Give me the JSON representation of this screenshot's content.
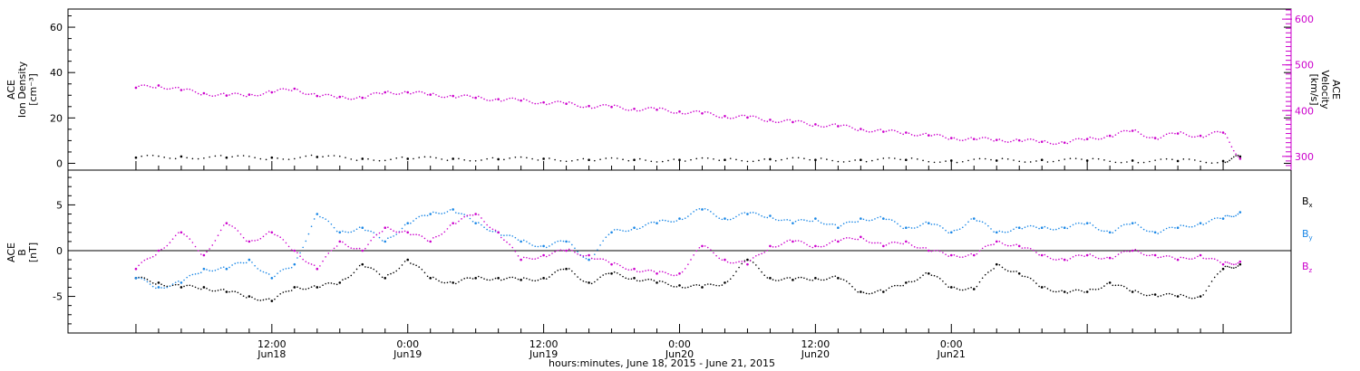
{
  "chart_data": [
    {
      "type": "scatter",
      "panel": "top",
      "left_axis": {
        "label_lines": [
          "ACE",
          "Ion Density",
          "[cm⁻³]"
        ],
        "ticks": [
          0,
          20,
          40,
          60
        ],
        "tick_labels": [
          "0",
          "20",
          "40",
          "60"
        ],
        "range": [
          -3,
          68
        ],
        "color": "#000000"
      },
      "right_axis": {
        "label_lines": [
          "ACE",
          "Velocity",
          "[km/s]"
        ],
        "ticks": [
          300,
          400,
          500,
          600
        ],
        "tick_labels": [
          "300",
          "400",
          "500",
          "600"
        ],
        "range": [
          270,
          622
        ],
        "color": "#cc00cc"
      },
      "series": [
        {
          "axis": "right",
          "color": "#cc00cc",
          "x": [
            0,
            2,
            4,
            6,
            8,
            10,
            12,
            14,
            16,
            18,
            20,
            22,
            24,
            26,
            28,
            30,
            32,
            34,
            36,
            38,
            40,
            42,
            44,
            46,
            48,
            50,
            52,
            54,
            56,
            58,
            60,
            62,
            64,
            66,
            68,
            70,
            72,
            74,
            76,
            78,
            80,
            82,
            84,
            86,
            88,
            90,
            92,
            94,
            96,
            97.5
          ],
          "values": [
            450,
            455,
            445,
            438,
            433,
            435,
            440,
            448,
            432,
            430,
            428,
            440,
            440,
            435,
            432,
            428,
            425,
            422,
            418,
            415,
            410,
            408,
            404,
            402,
            398,
            394,
            388,
            385,
            380,
            375,
            370,
            366,
            360,
            354,
            352,
            346,
            340,
            338,
            336,
            335,
            332,
            330,
            338,
            345,
            356,
            340,
            350,
            345,
            352,
            295
          ]
        },
        {
          "axis": "left",
          "color": "#000000",
          "x": [
            0,
            4,
            8,
            12,
            16,
            20,
            24,
            28,
            32,
            36,
            40,
            44,
            48,
            52,
            56,
            60,
            64,
            68,
            72,
            76,
            80,
            84,
            88,
            92,
            96,
            97.5
          ],
          "values": [
            2.5,
            3,
            2.5,
            2.5,
            2.8,
            2,
            2,
            2,
            1.8,
            2,
            1.5,
            1.5,
            1.5,
            1.5,
            1.8,
            1.5,
            1.5,
            1.5,
            1.2,
            1.2,
            1.5,
            1.2,
            1.2,
            1,
            1,
            3
          ]
        }
      ]
    },
    {
      "type": "scatter",
      "panel": "bottom",
      "left_axis": {
        "label_lines": [
          "ACE",
          "B",
          "[nT]"
        ],
        "ticks": [
          -5,
          0,
          5
        ],
        "tick_labels": [
          "-5",
          "0",
          "5"
        ],
        "range": [
          -9,
          8.8
        ]
      },
      "zero_line": true,
      "series": [
        {
          "name": "B",
          "subscript": "x",
          "color": "#000000",
          "x": [
            0,
            2,
            4,
            6,
            8,
            10,
            12,
            14,
            16,
            18,
            20,
            22,
            24,
            26,
            28,
            30,
            32,
            34,
            36,
            38,
            40,
            42,
            44,
            46,
            48,
            50,
            52,
            54,
            56,
            58,
            60,
            62,
            64,
            66,
            68,
            70,
            72,
            74,
            76,
            78,
            80,
            82,
            84,
            86,
            88,
            90,
            92,
            94,
            96,
            97.5
          ],
          "values": [
            -3,
            -3.5,
            -4,
            -4,
            -4.5,
            -5,
            -5.5,
            -4,
            -4,
            -3.5,
            -1.5,
            -3,
            -1,
            -3,
            -3.5,
            -3,
            -3,
            -3.2,
            -3,
            -2,
            -3.5,
            -2.5,
            -3,
            -3.5,
            -3.8,
            -4,
            -3.5,
            -1,
            -3,
            -3.2,
            -3,
            -3,
            -4.5,
            -4.5,
            -3.5,
            -2.5,
            -4,
            -4.2,
            -1.5,
            -2.5,
            -4,
            -4.5,
            -4.5,
            -3.5,
            -4.5,
            -4.8,
            -5,
            -5,
            -2,
            -1.5
          ]
        },
        {
          "name": "B",
          "subscript": "y",
          "color": "#1a87e6",
          "x": [
            0,
            2,
            4,
            6,
            8,
            10,
            12,
            14,
            16,
            18,
            20,
            22,
            24,
            26,
            28,
            30,
            32,
            34,
            36,
            38,
            40,
            42,
            44,
            46,
            48,
            50,
            52,
            54,
            56,
            58,
            60,
            62,
            64,
            66,
            68,
            70,
            72,
            74,
            76,
            78,
            80,
            82,
            84,
            86,
            88,
            90,
            92,
            94,
            96,
            97.5
          ],
          "values": [
            -3,
            -4,
            -3.5,
            -2,
            -2,
            -1,
            -3,
            -1.5,
            4,
            2,
            2.5,
            1,
            3,
            4,
            4.5,
            3,
            2,
            1,
            0.5,
            1,
            -1,
            2,
            2.5,
            3,
            3.5,
            4.5,
            3.5,
            4,
            3.8,
            3,
            3.5,
            2.5,
            3.5,
            3.5,
            2.5,
            3,
            2,
            3.5,
            2,
            2.5,
            2.5,
            2.5,
            3,
            2,
            3,
            2,
            2.5,
            3,
            3.5,
            4.2
          ]
        },
        {
          "name": "B",
          "subscript": "z",
          "color": "#cc00cc",
          "x": [
            0,
            2,
            4,
            6,
            8,
            10,
            12,
            14,
            16,
            18,
            20,
            22,
            24,
            26,
            28,
            30,
            32,
            34,
            36,
            38,
            40,
            42,
            44,
            46,
            48,
            50,
            52,
            54,
            56,
            58,
            60,
            62,
            64,
            66,
            68,
            70,
            72,
            74,
            76,
            78,
            80,
            82,
            84,
            86,
            88,
            90,
            92,
            94,
            96,
            97.5
          ],
          "values": [
            -2,
            0,
            2,
            -0.5,
            3,
            1,
            2,
            0,
            -2,
            1,
            0,
            2.5,
            2,
            1,
            3,
            4,
            2,
            -1,
            -0.5,
            0,
            -0.5,
            -1.5,
            -2,
            -2.5,
            -2.5,
            0.5,
            -1,
            -1.5,
            0.5,
            1,
            0.5,
            1,
            1.5,
            0.5,
            1,
            0,
            -0.5,
            -0.5,
            1,
            0.5,
            -0.5,
            -1,
            -0.5,
            -0.8,
            0,
            -0.5,
            -1,
            -0.5,
            -1.5,
            -1.2
          ]
        }
      ]
    }
  ],
  "x_axis": {
    "range_hours": [
      -6,
      102
    ],
    "major_ticks": [
      {
        "hours": 12,
        "time_label": "12:00",
        "date_label": "Jun18"
      },
      {
        "hours": 24,
        "time_label": "0:00",
        "date_label": "Jun19"
      },
      {
        "hours": 36,
        "time_label": "12:00",
        "date_label": "Jun19"
      },
      {
        "hours": 48,
        "time_label": "0:00",
        "date_label": "Jun20"
      },
      {
        "hours": 60,
        "time_label": "12:00",
        "date_label": "Jun20"
      },
      {
        "hours": 72,
        "time_label": "0:00",
        "date_label": "Jun21"
      }
    ],
    "title": "hours:minutes, June 18, 2015 - June 21, 2015"
  },
  "colors": {
    "black": "#000000",
    "magenta": "#cc00cc",
    "blue": "#1a87e6"
  }
}
